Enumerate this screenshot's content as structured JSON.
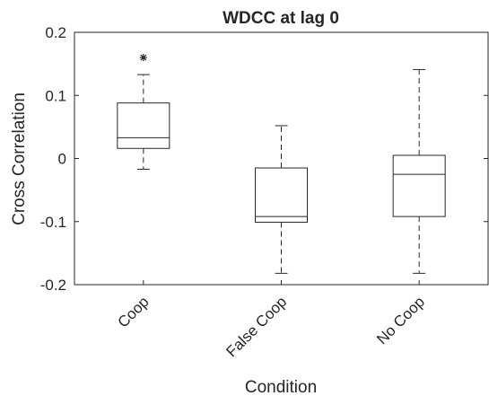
{
  "chart_data": {
    "type": "boxplot",
    "title": "WDCC at lag 0",
    "xlabel": "Condition",
    "ylabel": "Cross Correlation",
    "ylim": [
      -0.2,
      0.2
    ],
    "yticks": [
      -0.2,
      -0.1,
      0,
      0.1,
      0.2
    ],
    "ytick_labels": [
      "-0.2",
      "-0.1",
      "0",
      "0.1",
      "0.2"
    ],
    "categories": [
      "Coop",
      "False Coop",
      "No Coop"
    ],
    "boxes": [
      {
        "category": "Coop",
        "whisker_low": -0.017,
        "q1": 0.016,
        "median": 0.033,
        "q3": 0.088,
        "whisker_high": 0.133,
        "outliers": [
          0.16
        ]
      },
      {
        "category": "False Coop",
        "whisker_low": -0.182,
        "q1": -0.101,
        "median": -0.092,
        "q3": -0.015,
        "whisker_high": 0.052,
        "outliers": []
      },
      {
        "category": "No Coop",
        "whisker_low": -0.182,
        "q1": -0.092,
        "median": -0.025,
        "q3": 0.005,
        "whisker_high": 0.141,
        "outliers": []
      }
    ],
    "outlier_marker": "*",
    "grid": false,
    "colors": {
      "box": "#262626",
      "text": "#262626",
      "background": "#ffffff"
    }
  }
}
